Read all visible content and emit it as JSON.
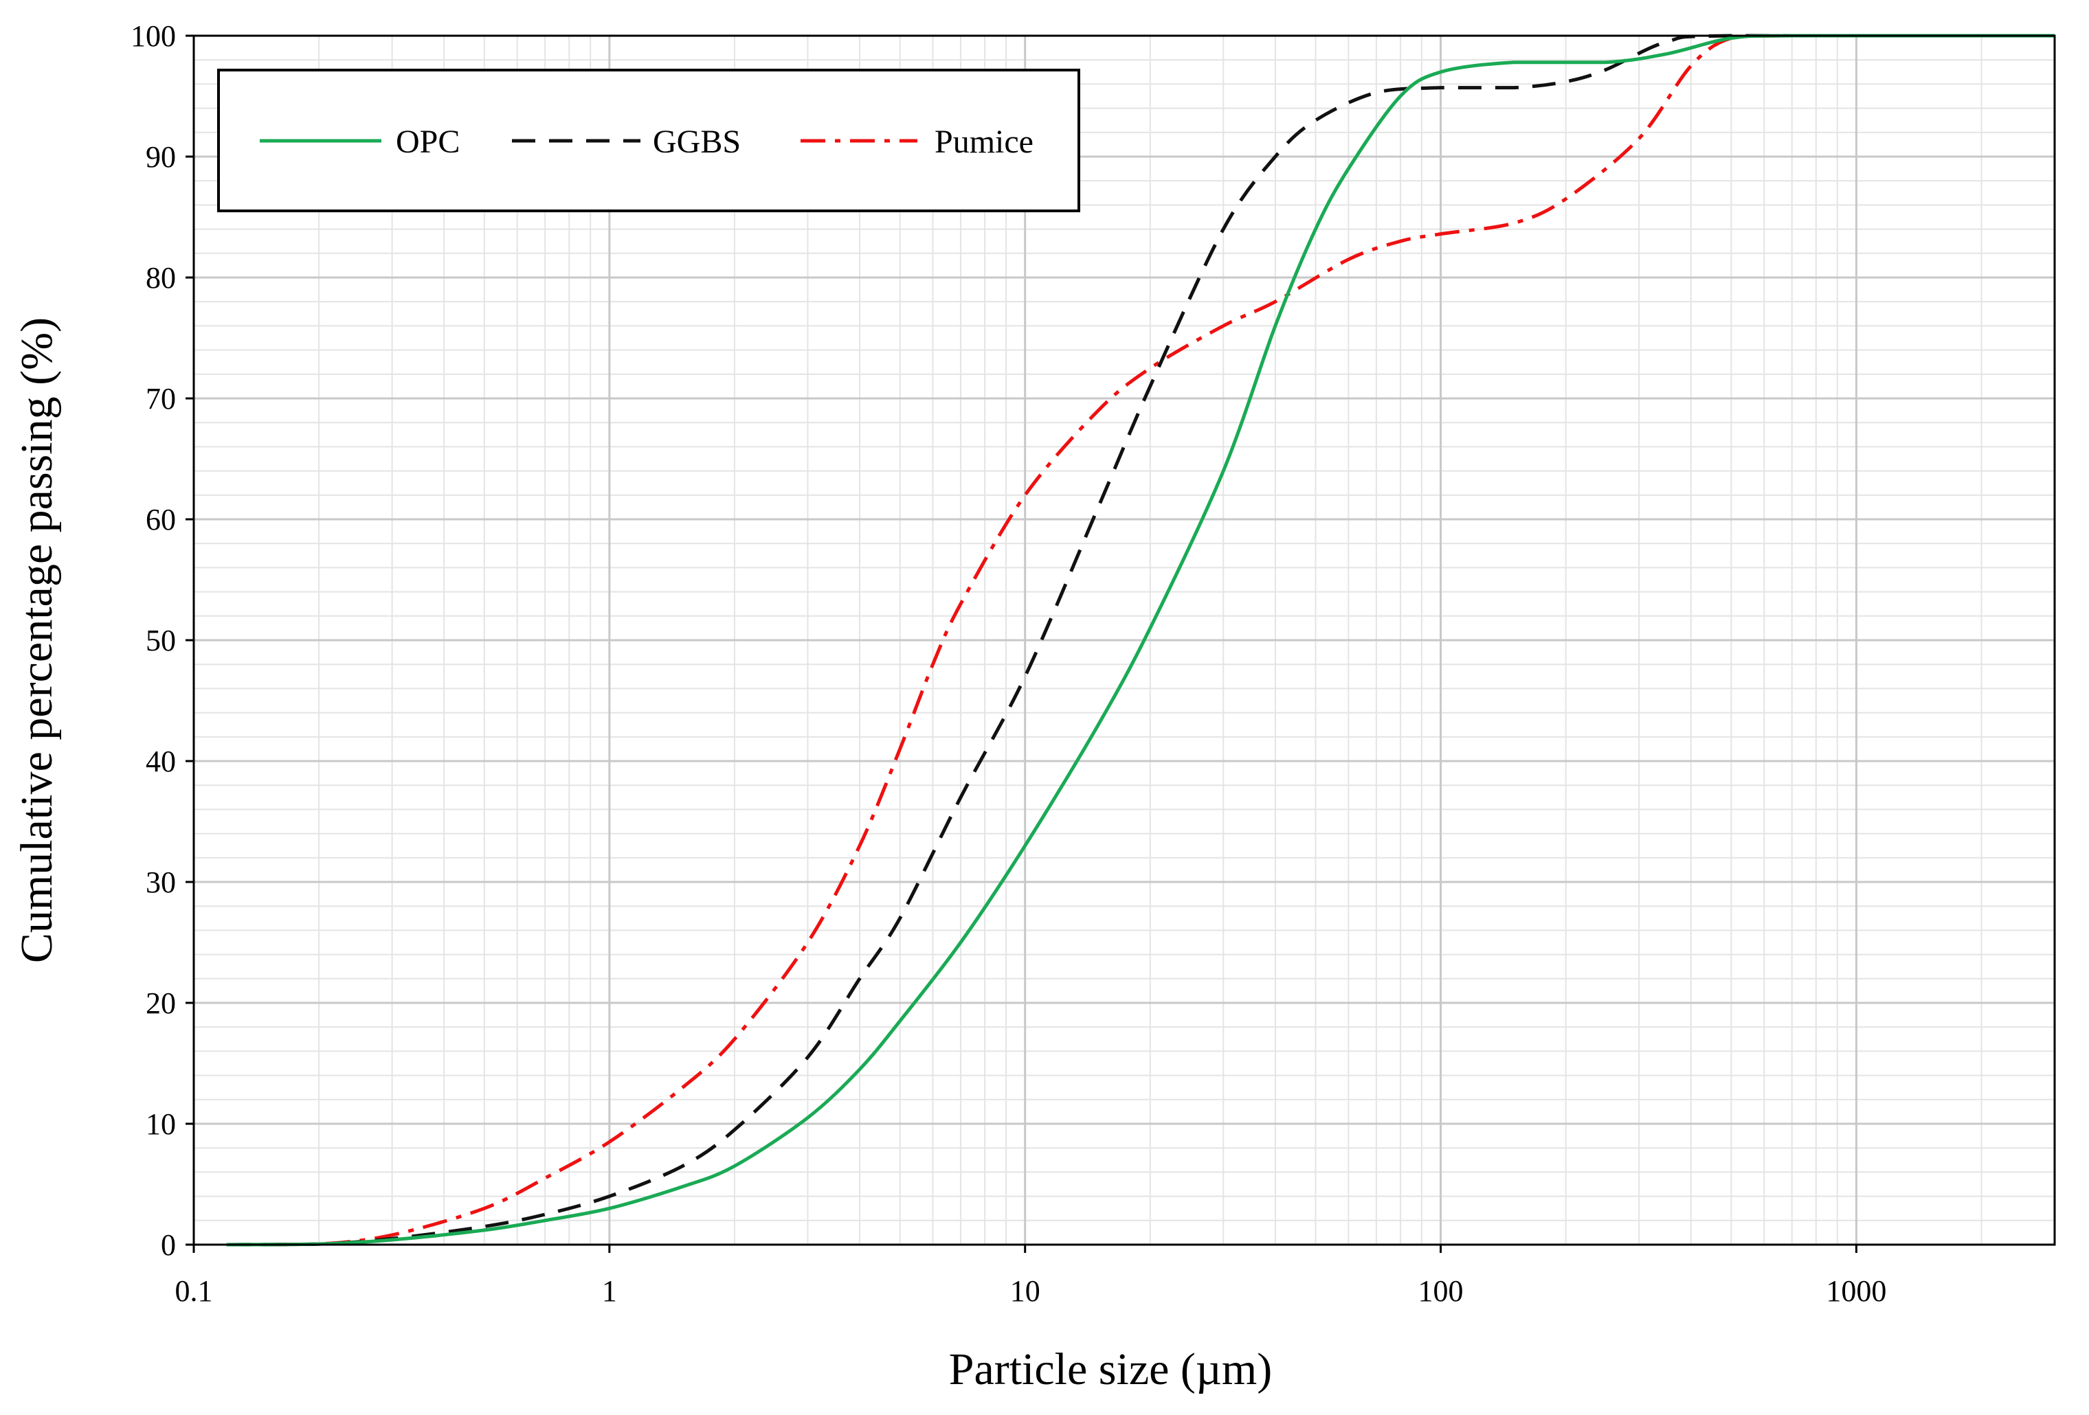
{
  "chart_data": {
    "type": "line",
    "title": "",
    "xlabel": "Particle size (µm)",
    "ylabel": "Cumulative percentage passing (%)",
    "xscale": "log",
    "xlim": [
      0.1,
      3000
    ],
    "ylim": [
      0,
      100
    ],
    "xticks": [
      0.1,
      1,
      10,
      100,
      1000
    ],
    "xtick_labels": [
      "0.1",
      "1",
      "10",
      "100",
      "1000"
    ],
    "yticks": [
      0,
      10,
      20,
      30,
      40,
      50,
      60,
      70,
      80,
      90,
      100
    ],
    "ytick_labels": [
      "0",
      "10",
      "20",
      "30",
      "40",
      "50",
      "60",
      "70",
      "80",
      "90",
      "100"
    ],
    "grid": true,
    "legend_position": "top-left",
    "series": [
      {
        "name": "OPC",
        "color": "#1aaa55",
        "style": "solid",
        "points": [
          [
            0.12,
            0
          ],
          [
            0.2,
            0.05
          ],
          [
            0.3,
            0.4
          ],
          [
            0.5,
            1.2
          ],
          [
            0.7,
            2.0
          ],
          [
            1,
            3.0
          ],
          [
            1.5,
            4.8
          ],
          [
            2,
            6.5
          ],
          [
            3,
            10.5
          ],
          [
            4,
            14.5
          ],
          [
            5,
            18.5
          ],
          [
            7,
            25
          ],
          [
            10,
            33
          ],
          [
            15,
            43
          ],
          [
            20,
            51
          ],
          [
            30,
            64
          ],
          [
            40,
            76
          ],
          [
            50,
            84
          ],
          [
            60,
            89
          ],
          [
            80,
            95
          ],
          [
            100,
            97
          ],
          [
            150,
            97.8
          ],
          [
            250,
            97.8
          ],
          [
            350,
            98.5
          ],
          [
            500,
            99.8
          ],
          [
            700,
            100
          ],
          [
            3000,
            100
          ]
        ]
      },
      {
        "name": "GGBS",
        "color": "#111111",
        "style": "dashed",
        "points": [
          [
            0.12,
            0
          ],
          [
            0.2,
            0.05
          ],
          [
            0.3,
            0.5
          ],
          [
            0.5,
            1.5
          ],
          [
            0.7,
            2.5
          ],
          [
            1,
            4.0
          ],
          [
            1.5,
            6.5
          ],
          [
            2,
            9.5
          ],
          [
            3,
            15.5
          ],
          [
            4,
            22
          ],
          [
            5,
            27
          ],
          [
            7,
            37
          ],
          [
            10,
            47
          ],
          [
            15,
            61
          ],
          [
            20,
            71
          ],
          [
            30,
            84
          ],
          [
            40,
            90
          ],
          [
            50,
            93
          ],
          [
            70,
            95.3
          ],
          [
            100,
            95.7
          ],
          [
            150,
            95.7
          ],
          [
            200,
            96.2
          ],
          [
            250,
            97.2
          ],
          [
            350,
            99.5
          ],
          [
            500,
            100
          ],
          [
            3000,
            100
          ]
        ]
      },
      {
        "name": "Pumice",
        "color": "#ee1111",
        "style": "dashdot",
        "points": [
          [
            0.12,
            0
          ],
          [
            0.2,
            0.05
          ],
          [
            0.3,
            0.8
          ],
          [
            0.5,
            3.0
          ],
          [
            0.7,
            5.5
          ],
          [
            1,
            8.5
          ],
          [
            1.5,
            13
          ],
          [
            2,
            17
          ],
          [
            3,
            25
          ],
          [
            4,
            33
          ],
          [
            5,
            41
          ],
          [
            6,
            48
          ],
          [
            7,
            53
          ],
          [
            10,
            62
          ],
          [
            15,
            69
          ],
          [
            20,
            72.5
          ],
          [
            30,
            76
          ],
          [
            40,
            78
          ],
          [
            60,
            81.5
          ],
          [
            80,
            83
          ],
          [
            100,
            83.6
          ],
          [
            150,
            84.5
          ],
          [
            200,
            86.5
          ],
          [
            300,
            91.5
          ],
          [
            400,
            97.5
          ],
          [
            500,
            99.8
          ],
          [
            700,
            100
          ],
          [
            3000,
            100
          ]
        ]
      }
    ]
  }
}
